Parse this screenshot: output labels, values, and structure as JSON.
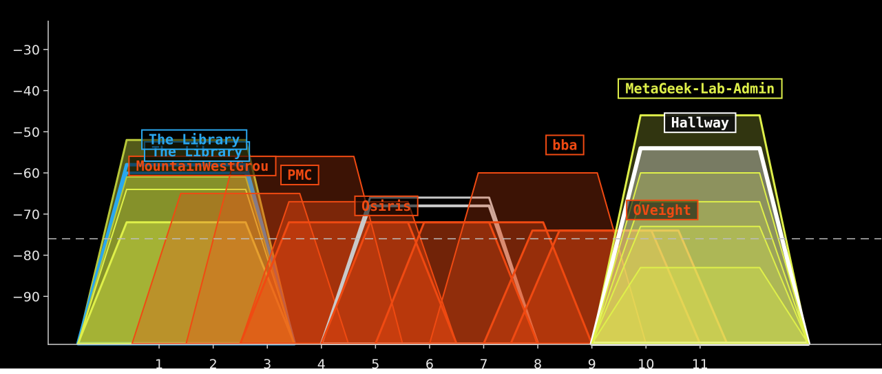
{
  "chart_data": {
    "type": "area",
    "title": "",
    "xlabel": "",
    "ylabel": "",
    "x_ticks": [
      1,
      2,
      3,
      4,
      5,
      6,
      7,
      8,
      9,
      10,
      11
    ],
    "y_ticks": [
      -30,
      -40,
      -50,
      -60,
      -70,
      -80,
      -90
    ],
    "xlim": [
      -1.05,
      14.35
    ],
    "ylim": [
      -101.5,
      -23
    ],
    "threshold": -76,
    "grid": false,
    "colors": {
      "background": "#000000",
      "axis": "#cfcfcf",
      "threshold_line": "#bdbdbd",
      "blue": "#2aa7ee",
      "white": "#ffffff",
      "lime": "#dff04a",
      "olive": "#b8c83a",
      "orange": "#f04a12",
      "silver": "#c9c9c9"
    },
    "series": [
      {
        "name": "",
        "center": 1.5,
        "width": 4,
        "rssi": -52,
        "color": "olive",
        "fill_opacity": 0.45,
        "stroke_width": 3
      },
      {
        "name": "",
        "center": 1.5,
        "width": 4,
        "rssi": -58,
        "color": "blue",
        "fill_opacity": 0.0,
        "stroke_width": 5
      },
      {
        "name": "",
        "center": 1.5,
        "width": 4,
        "rssi": -60,
        "color": "blue",
        "fill_opacity": 0.0,
        "stroke_width": 4
      },
      {
        "name": "",
        "center": 1.5,
        "width": 4,
        "rssi": -61,
        "color": "olive",
        "fill_opacity": 0.5,
        "stroke_width": 2
      },
      {
        "name": "",
        "center": 1.5,
        "width": 4,
        "rssi": -64,
        "color": "lime",
        "fill_opacity": 0.0,
        "stroke_width": 2
      },
      {
        "name": "",
        "center": 1.5,
        "width": 4,
        "rssi": -72,
        "color": "lime",
        "fill_opacity": 0.35,
        "stroke_width": 3
      },
      {
        "name": "",
        "center": 2.5,
        "width": 4,
        "rssi": -65,
        "color": "orange",
        "fill_opacity": 0.3,
        "stroke_width": 2
      },
      {
        "name": "",
        "center": 3.5,
        "width": 4,
        "rssi": -56,
        "color": "orange",
        "fill_opacity": 0.25,
        "stroke_width": 2
      },
      {
        "name": "",
        "center": 4.5,
        "width": 4,
        "rssi": -67,
        "color": "orange",
        "fill_opacity": 0.35,
        "stroke_width": 2
      },
      {
        "name": "",
        "center": 4.5,
        "width": 4,
        "rssi": -72,
        "color": "orange",
        "fill_opacity": 0.35,
        "stroke_width": 3
      },
      {
        "name": "",
        "center": 6.0,
        "width": 4,
        "rssi": -66,
        "color": "silver",
        "fill_opacity": 0.0,
        "stroke_width": 3
      },
      {
        "name": "",
        "center": 6.0,
        "width": 4,
        "rssi": -68,
        "color": "silver",
        "fill_opacity": 0.0,
        "stroke_width": 4
      },
      {
        "name": "",
        "center": 6.0,
        "width": 4,
        "rssi": -72,
        "color": "orange",
        "fill_opacity": 0.25,
        "stroke_width": 3
      },
      {
        "name": "",
        "center": 7.0,
        "width": 4,
        "rssi": -72,
        "color": "orange",
        "fill_opacity": 0.3,
        "stroke_width": 3
      },
      {
        "name": "",
        "center": 8.0,
        "width": 4,
        "rssi": -60,
        "color": "orange",
        "fill_opacity": 0.25,
        "stroke_width": 2
      },
      {
        "name": "",
        "center": 9.0,
        "width": 4,
        "rssi": -74,
        "color": "orange",
        "fill_opacity": 0.3,
        "stroke_width": 3
      },
      {
        "name": "",
        "center": 9.5,
        "width": 4,
        "rssi": -74,
        "color": "orange",
        "fill_opacity": 0.3,
        "stroke_width": 3
      },
      {
        "name": "",
        "center": 11.0,
        "width": 4,
        "rssi": -46,
        "color": "lime",
        "fill_opacity": 0.22,
        "stroke_width": 3
      },
      {
        "name": "",
        "center": 11.0,
        "width": 4,
        "rssi": -54,
        "color": "white",
        "fill_opacity": 0.35,
        "stroke_width": 6
      },
      {
        "name": "",
        "center": 11.0,
        "width": 4,
        "rssi": -60,
        "color": "lime",
        "fill_opacity": 0.2,
        "stroke_width": 2
      },
      {
        "name": "",
        "center": 11.0,
        "width": 4,
        "rssi": -67,
        "color": "lime",
        "fill_opacity": 0.2,
        "stroke_width": 2
      },
      {
        "name": "",
        "center": 11.0,
        "width": 4,
        "rssi": -73,
        "color": "lime",
        "fill_opacity": 0.25,
        "stroke_width": 2
      },
      {
        "name": "",
        "center": 11.0,
        "width": 4,
        "rssi": -83,
        "color": "lime",
        "fill_opacity": 0.3,
        "stroke_width": 2
      }
    ],
    "annotations": [
      {
        "text": "MetaGeek-Lab-Admin",
        "channel": 11.0,
        "rssi": -39.5,
        "color": "lime"
      },
      {
        "text": "Hallway",
        "channel": 11.0,
        "rssi": -47.8,
        "color": "white",
        "bg": "#101010"
      },
      {
        "text": "bba",
        "channel": 8.5,
        "rssi": -53.2,
        "color": "orange"
      },
      {
        "text": "ОVeight",
        "channel": 10.3,
        "rssi": -69.0,
        "color": "orange"
      },
      {
        "text": "Osiris",
        "channel": 5.2,
        "rssi": -68.0,
        "color": "orange"
      },
      {
        "text": "PMC",
        "channel": 3.6,
        "rssi": -60.5,
        "color": "orange"
      },
      {
        "text": "MountainWestGrou",
        "channel": 1.8,
        "rssi": -58.3,
        "color": "orange"
      },
      {
        "text": "The Library",
        "channel": 1.7,
        "rssi": -54.8,
        "color": "blue"
      },
      {
        "text": "The Library",
        "channel": 1.65,
        "rssi": -51.9,
        "color": "blue"
      }
    ]
  }
}
